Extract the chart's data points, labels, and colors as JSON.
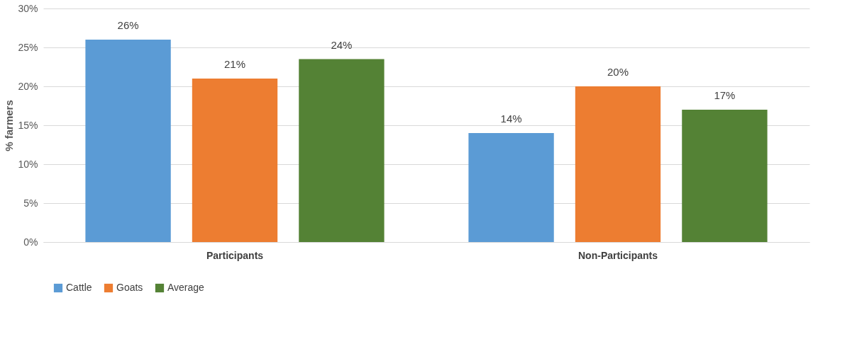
{
  "chart_data": {
    "type": "bar",
    "ylabel": "% farmers",
    "categories": [
      "Participants",
      "Non-Participants"
    ],
    "series": [
      {
        "name": "Cattle",
        "color": "#5b9bd5",
        "values": [
          26,
          14
        ],
        "value_labels": [
          "26%",
          "14%"
        ]
      },
      {
        "name": "Goats",
        "color": "#ed7d31",
        "values": [
          21,
          20
        ],
        "value_labels": [
          "21%",
          "20%"
        ]
      },
      {
        "name": "Average",
        "color": "#548235",
        "values": [
          23.5,
          17
        ],
        "value_labels": [
          "24%",
          "17%"
        ]
      }
    ],
    "ylim": [
      0,
      30
    ],
    "yticks": [
      {
        "value": 0,
        "label": "0%"
      },
      {
        "value": 5,
        "label": "5%"
      },
      {
        "value": 10,
        "label": "10%"
      },
      {
        "value": 15,
        "label": "15%"
      },
      {
        "value": 20,
        "label": "20%"
      },
      {
        "value": 25,
        "label": "25%"
      },
      {
        "value": 30,
        "label": "30%"
      }
    ],
    "grid": "y",
    "legend": "bottom"
  }
}
